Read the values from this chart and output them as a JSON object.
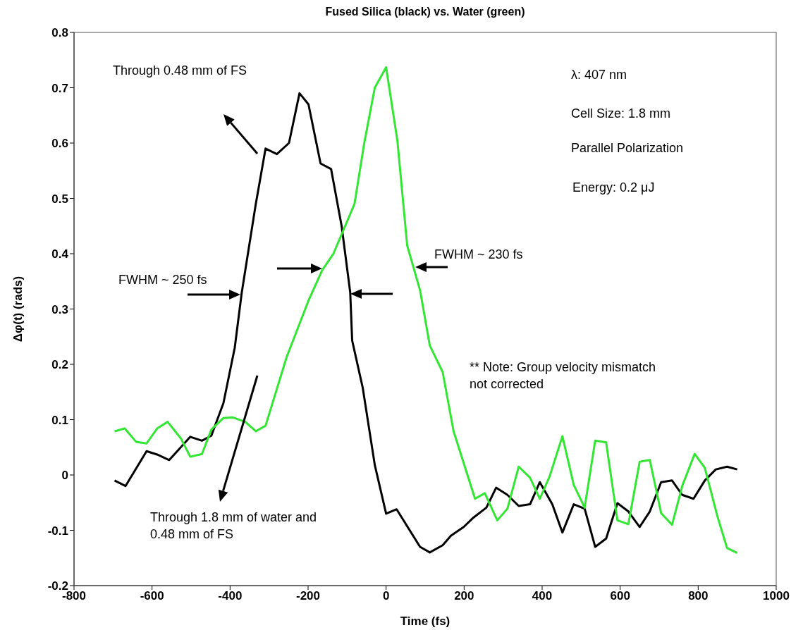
{
  "chart_data": {
    "type": "line",
    "title": "Fused Silica (black) vs. Water (green)",
    "xlabel": "Time (fs)",
    "ylabel": "Δφ(t) (rads)",
    "series": [
      {
        "color": "#000000",
        "x": [
          -696,
          -668,
          -614,
          -587,
          -556,
          -502,
          -472,
          -448,
          -417,
          -388,
          -370,
          -334,
          -309,
          -280,
          -249,
          -222,
          -199,
          -168,
          -141,
          -114,
          -92,
          -87,
          -60,
          -29,
          0,
          27,
          87,
          112,
          145,
          166,
          199,
          224,
          257,
          282,
          311,
          340,
          369,
          394,
          426,
          452,
          481,
          509,
          536,
          564,
          593,
          621,
          650,
          676,
          705,
          733,
          759,
          788,
          817,
          845,
          874,
          900
        ],
        "values": [
          -0.01,
          -0.02,
          0.043,
          0.037,
          0.027,
          0.069,
          0.062,
          0.071,
          0.13,
          0.23,
          0.33,
          0.49,
          0.59,
          0.58,
          0.6,
          0.69,
          0.67,
          0.563,
          0.553,
          0.45,
          0.33,
          0.243,
          0.158,
          0.018,
          -0.07,
          -0.062,
          -0.13,
          -0.14,
          -0.127,
          -0.11,
          -0.094,
          -0.077,
          -0.059,
          -0.023,
          -0.036,
          -0.056,
          -0.053,
          -0.013,
          -0.053,
          -0.104,
          -0.053,
          -0.061,
          -0.13,
          -0.115,
          -0.051,
          -0.066,
          -0.094,
          -0.066,
          -0.013,
          -0.01,
          -0.036,
          -0.043,
          -0.01,
          0.01,
          0.015,
          0.01
        ]
      },
      {
        "color": "#33e633",
        "x": [
          -696,
          -670,
          -641,
          -614,
          -587,
          -560,
          -526,
          -502,
          -472,
          -448,
          -417,
          -393,
          -361,
          -334,
          -309,
          -255,
          -199,
          -164,
          -135,
          -81,
          -56,
          -29,
          0,
          29,
          54,
          87,
          112,
          145,
          173,
          228,
          253,
          285,
          311,
          340,
          369,
          394,
          419,
          452,
          481,
          509,
          536,
          564,
          593,
          621,
          650,
          676,
          705,
          733,
          760,
          791,
          817,
          849,
          874,
          900
        ],
        "values": [
          0.079,
          0.084,
          0.06,
          0.057,
          0.084,
          0.096,
          0.066,
          0.033,
          0.038,
          0.082,
          0.103,
          0.104,
          0.096,
          0.079,
          0.089,
          0.213,
          0.315,
          0.37,
          0.4,
          0.49,
          0.6,
          0.7,
          0.737,
          0.604,
          0.415,
          0.334,
          0.234,
          0.186,
          0.079,
          -0.043,
          -0.033,
          -0.082,
          -0.061,
          0.015,
          -0.005,
          -0.043,
          -0.003,
          0.07,
          -0.018,
          -0.059,
          0.062,
          0.059,
          -0.082,
          -0.089,
          0.024,
          0.027,
          -0.069,
          -0.09,
          -0.018,
          0.038,
          0.013,
          -0.074,
          -0.132,
          -0.141
        ]
      }
    ],
    "xlim": [
      -800,
      1000
    ],
    "xticks": [
      -800,
      -600,
      -400,
      -200,
      0,
      200,
      400,
      600,
      800,
      1000
    ],
    "ylim": [
      -0.2,
      0.8
    ],
    "yticks": [
      -0.2,
      -0.1,
      0,
      0.1,
      0.2,
      0.3,
      0.4,
      0.5,
      0.6,
      0.7,
      0.8
    ],
    "annotations": [
      "Through 0.48 mm of FS",
      "Through 1.8 mm of water and 0.48 mm of FS",
      "FWHM ~ 250 fs",
      "FWHM ~ 230 fs",
      "λ: 407 nm",
      "Cell Size: 1.8 mm",
      "Parallel Polarization",
      "Energy: 0.2 μJ",
      "** Note: Group velocity mismatch not corrected"
    ]
  }
}
